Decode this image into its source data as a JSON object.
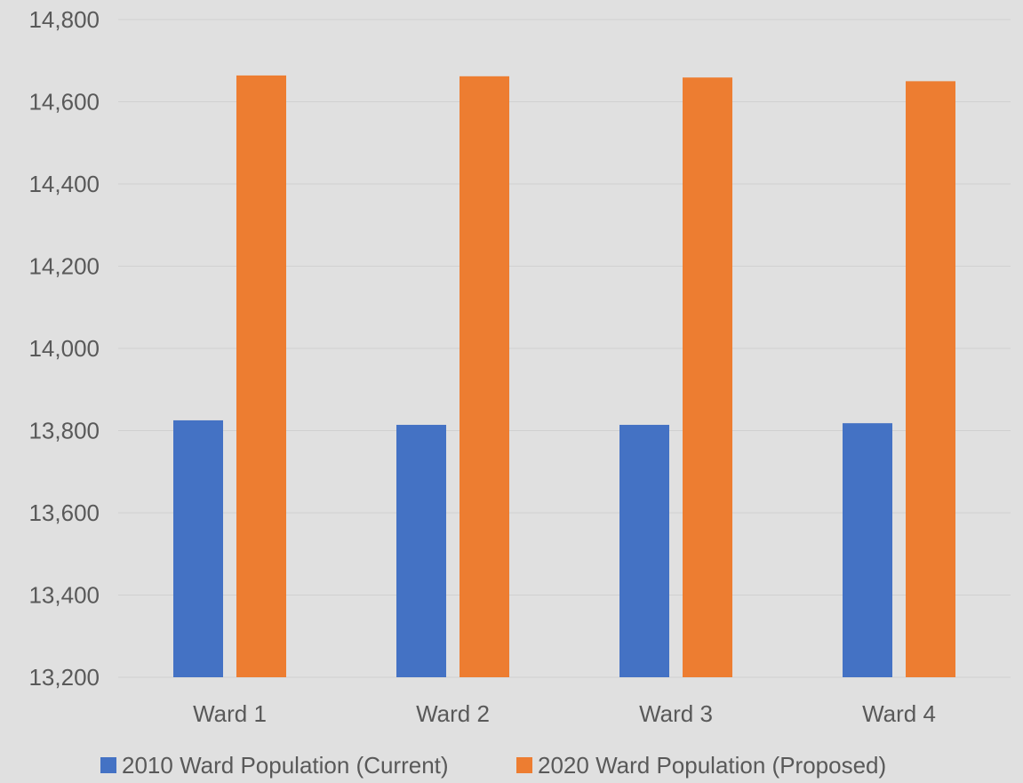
{
  "chart_data": {
    "type": "bar",
    "categories": [
      "Ward 1",
      "Ward 2",
      "Ward 3",
      "Ward 4"
    ],
    "series": [
      {
        "name": "2010 Ward Population (Current)",
        "color": "#4472c4",
        "values": [
          13825,
          13814,
          13814,
          13818
        ]
      },
      {
        "name": "2020 Ward Population (Proposed)",
        "color": "#ed7d31",
        "values": [
          14664,
          14662,
          14659,
          14650
        ]
      }
    ],
    "ylim": [
      13200,
      14800
    ],
    "yticks": [
      "13,200",
      "13,400",
      "13,600",
      "13,800",
      "14,000",
      "14,200",
      "14,400",
      "14,600",
      "14,800"
    ],
    "grid": true,
    "legend_position": "bottom"
  }
}
